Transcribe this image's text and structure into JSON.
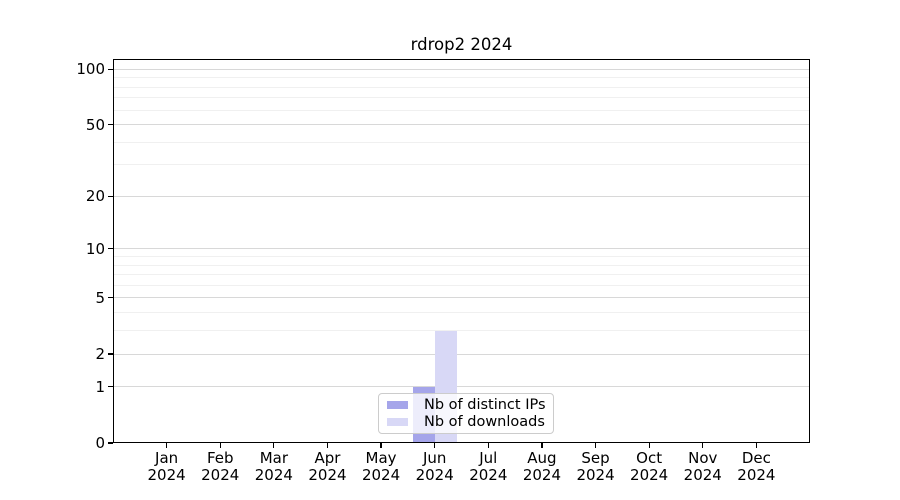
{
  "title": "rdrop2 2024",
  "colors": {
    "distinct_ips": "#a5a5ea",
    "downloads": "#d8d8f6",
    "grid_major": "#d8d8d8",
    "grid_minor": "#f0f0f0",
    "spine": "#000000",
    "legend_border": "#cccccc"
  },
  "legend": {
    "items": [
      {
        "label": "Nb of distinct IPs",
        "color_key": "distinct_ips"
      },
      {
        "label": "Nb of downloads",
        "color_key": "downloads"
      }
    ]
  },
  "chart_data": {
    "type": "bar",
    "title": "rdrop2 2024",
    "x": [
      {
        "month": "Jan",
        "year": "2024"
      },
      {
        "month": "Feb",
        "year": "2024"
      },
      {
        "month": "Mar",
        "year": "2024"
      },
      {
        "month": "Apr",
        "year": "2024"
      },
      {
        "month": "May",
        "year": "2024"
      },
      {
        "month": "Jun",
        "year": "2024"
      },
      {
        "month": "Jul",
        "year": "2024"
      },
      {
        "month": "Aug",
        "year": "2024"
      },
      {
        "month": "Sep",
        "year": "2024"
      },
      {
        "month": "Oct",
        "year": "2024"
      },
      {
        "month": "Nov",
        "year": "2024"
      },
      {
        "month": "Dec",
        "year": "2024"
      }
    ],
    "series": [
      {
        "name": "Nb of distinct IPs",
        "color_key": "distinct_ips",
        "values": [
          0,
          0,
          0,
          0,
          0,
          1,
          0,
          0,
          0,
          0,
          0,
          0
        ]
      },
      {
        "name": "Nb of downloads",
        "color_key": "downloads",
        "values": [
          0,
          0,
          0,
          0,
          0,
          3,
          0,
          0,
          0,
          0,
          0,
          0
        ]
      }
    ],
    "y_axis": {
      "scale": "log10(1+x)",
      "ticks": [
        "100",
        "50",
        "20",
        "10",
        "5",
        "2",
        "1",
        "0"
      ],
      "major_gridlines": [
        1,
        2,
        5,
        10,
        20,
        50,
        100
      ],
      "minor_gridlines": [
        3,
        4,
        6,
        7,
        8,
        9,
        30,
        40,
        60,
        70,
        80,
        90
      ],
      "ylim": [
        0,
        115
      ]
    },
    "legend_position": "bottom-center",
    "xlabel": "",
    "ylabel": ""
  }
}
